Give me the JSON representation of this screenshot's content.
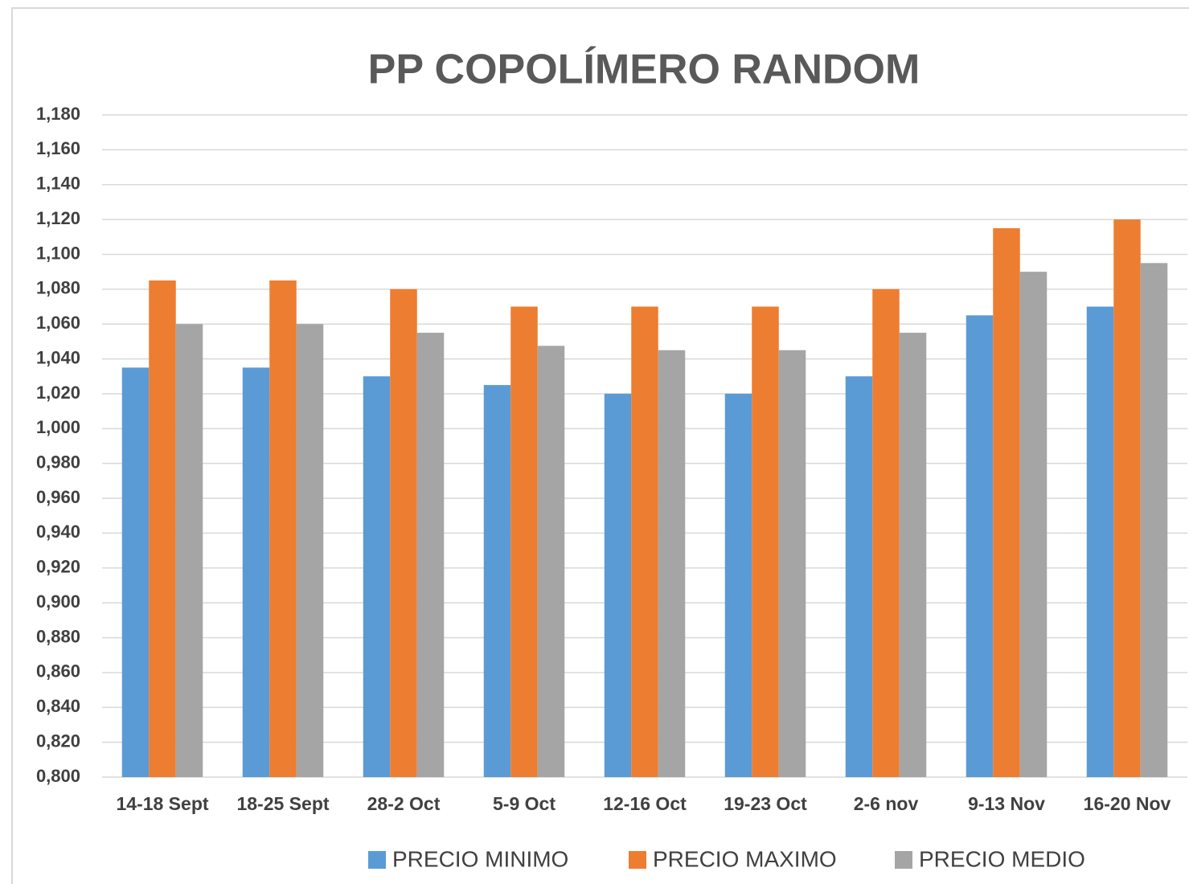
{
  "chart_data": {
    "type": "bar",
    "title": "PP COPOLÍMERO RANDOM",
    "categories": [
      "14-18 Sept",
      "18-25 Sept",
      "28-2 Oct",
      "5-9 Oct",
      "12-16 Oct",
      "19-23 Oct",
      "2-6 nov",
      "9-13 Nov",
      "16-20 Nov"
    ],
    "series": [
      {
        "name": "PRECIO MINIMO",
        "color": "#5b9bd5",
        "values": [
          1.035,
          1.035,
          1.03,
          1.025,
          1.02,
          1.02,
          1.03,
          1.065,
          1.07
        ]
      },
      {
        "name": "PRECIO MAXIMO",
        "color": "#ed7d31",
        "values": [
          1.085,
          1.085,
          1.08,
          1.07,
          1.07,
          1.07,
          1.08,
          1.115,
          1.12
        ]
      },
      {
        "name": "PRECIO MEDIO",
        "color": "#a5a5a5",
        "values": [
          1.06,
          1.06,
          1.055,
          1.0475,
          1.045,
          1.045,
          1.055,
          1.09,
          1.095
        ]
      }
    ],
    "ylim": [
      0.8,
      1.18
    ],
    "yticks": [
      {
        "value": 0.8,
        "label": "0,800"
      },
      {
        "value": 0.82,
        "label": "0,820"
      },
      {
        "value": 0.84,
        "label": "0,840"
      },
      {
        "value": 0.86,
        "label": "0,860"
      },
      {
        "value": 0.88,
        "label": "0,880"
      },
      {
        "value": 0.9,
        "label": "0,900"
      },
      {
        "value": 0.92,
        "label": "0,920"
      },
      {
        "value": 0.94,
        "label": "0,940"
      },
      {
        "value": 0.96,
        "label": "0,960"
      },
      {
        "value": 0.98,
        "label": "0,980"
      },
      {
        "value": 1.0,
        "label": "1,000"
      },
      {
        "value": 1.02,
        "label": "1,020"
      },
      {
        "value": 1.04,
        "label": "1,040"
      },
      {
        "value": 1.06,
        "label": "1,060"
      },
      {
        "value": 1.08,
        "label": "1,080"
      },
      {
        "value": 1.1,
        "label": "1,100"
      },
      {
        "value": 1.12,
        "label": "1,120"
      },
      {
        "value": 1.14,
        "label": "1,140"
      },
      {
        "value": 1.16,
        "label": "1,160"
      },
      {
        "value": 1.18,
        "label": "1,180"
      }
    ],
    "grid": true,
    "legend": "bottom"
  }
}
